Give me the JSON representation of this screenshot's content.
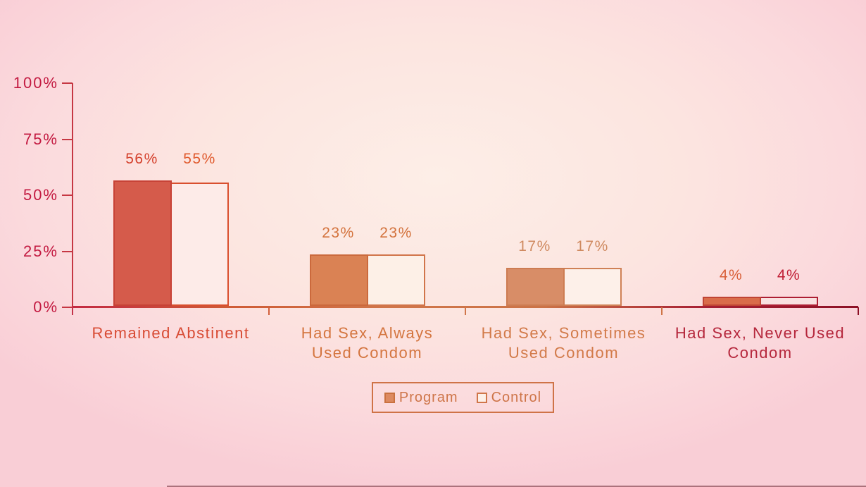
{
  "chart_data": {
    "type": "bar",
    "title": "",
    "categories": [
      "Remained Abstinent",
      "Had Sex, Always Used Condom",
      "Had Sex, Sometimes Used Condom",
      "Had Sex, Never Used Condom"
    ],
    "category_label_lines": [
      [
        "Remained Abstinent"
      ],
      [
        "Had Sex, Always",
        "Used Condom"
      ],
      [
        "Had Sex, Sometimes",
        "Used Condom"
      ],
      [
        "Had Sex, Never Used",
        "Condom"
      ]
    ],
    "series": [
      {
        "name": "Program",
        "values": [
          56,
          23,
          17,
          4
        ],
        "value_labels": [
          "56%",
          "23%",
          "17%",
          "4%"
        ]
      },
      {
        "name": "Control",
        "values": [
          55,
          23,
          17,
          4
        ],
        "value_labels": [
          "55%",
          "23%",
          "17%",
          "4%"
        ]
      }
    ],
    "y_axis": {
      "ticks": [
        "0%",
        "25%",
        "50%",
        "75%",
        "100%"
      ],
      "tick_values": [
        0,
        25,
        50,
        75,
        100
      ],
      "ylim": [
        0,
        100
      ],
      "label_color": "#c31a41",
      "line_color": "#c63743"
    },
    "x_axis": {
      "line_gradient": [
        "#c32a42",
        "#cf5b36",
        "#d0764a",
        "#cc7347",
        "#a82134",
        "#8d1126"
      ],
      "tick_colors": [
        "#c4334a",
        "#d2603c",
        "#d0764a",
        "#cf7547",
        "#8d1126"
      ]
    },
    "grid": false,
    "legend": {
      "position": "bottom",
      "border_color": "#cf7347",
      "text_color": "#ce7549",
      "items": [
        {
          "label": "Program",
          "swatch": "filled",
          "swatch_fill": "#dd8a61",
          "swatch_border": "#c9713f"
        },
        {
          "label": "Control",
          "swatch": "outline",
          "swatch_fill": "#fdf0e8",
          "swatch_border": "#d0764a"
        }
      ]
    },
    "group_styles": [
      {
        "program_fill": "#d55b4b",
        "program_border": "#c74236",
        "control_fill": "#fdebe8",
        "control_border": "#d94f2e",
        "category_color": "#d84b34",
        "program_value_color": "#d4402c",
        "control_value_color": "#e05a2d"
      },
      {
        "program_fill": "#da8254",
        "program_border": "#cb693c",
        "control_fill": "#fdf0e7",
        "control_border": "#d1754a",
        "category_color": "#d4753f",
        "program_value_color": "#d3723c",
        "control_value_color": "#d3723c"
      },
      {
        "program_fill": "#d88d67",
        "program_border": "#cd7c52",
        "control_fill": "#fdf0e9",
        "control_border": "#cf8156",
        "category_color": "#d27a49",
        "program_value_color": "#cf8a60",
        "control_value_color": "#cf8a60"
      },
      {
        "program_fill": "#d96c4a",
        "program_border": "#c04434",
        "control_fill": "#f9e1e0",
        "control_border": "#ad1e33",
        "category_color": "#b5273c",
        "program_value_color": "#d95f38",
        "control_value_color": "#c11e35"
      }
    ]
  },
  "background": {
    "center": "#fdeee7",
    "corner": "#f9ced6",
    "bottom_strip": "rgba(96,22,34,0.5)"
  }
}
